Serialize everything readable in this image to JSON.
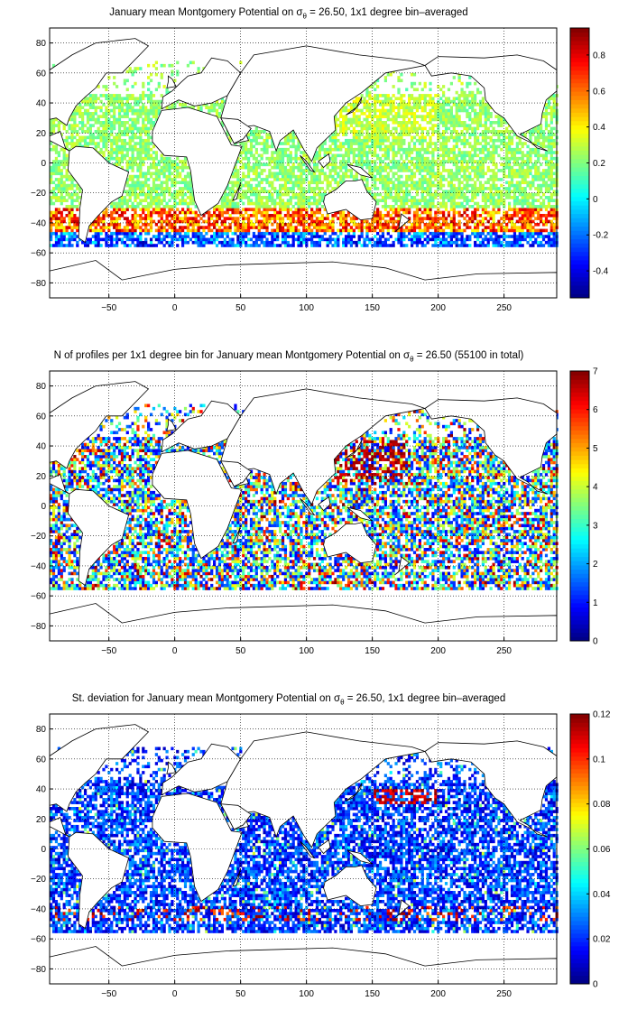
{
  "figure": {
    "panels": [
      {
        "title_pre": "January mean Montgomery Potential on σ",
        "title_sub": "θ",
        "title_post": " = 26.50, 1x1 degree bin–averaged",
        "colorbar_ticks": [
          "0.8",
          "0.6",
          "0.4",
          "0.2",
          "0",
          "-0.2",
          "-0.4"
        ]
      },
      {
        "title_pre": "N of profiles per 1x1 degree bin for January mean Montgomery Potential on σ",
        "title_sub": "θ",
        "title_post": " = 26.50 (55100 in total)",
        "colorbar_ticks": [
          "7",
          "6",
          "5",
          "4",
          "3",
          "2",
          "1",
          "0"
        ]
      },
      {
        "title_pre": "St. deviation for January mean Montgomery Potential on σ",
        "title_sub": "θ",
        "title_post": " = 26.50, 1x1 degree bin–averaged",
        "colorbar_ticks": [
          "0.12",
          "0.1",
          "0.08",
          "0.06",
          "0.04",
          "0.02",
          "0"
        ]
      }
    ]
  },
  "chart_data": [
    {
      "type": "heatmap",
      "title": "January mean Montgomery Potential on σθ = 26.50, 1x1 degree bin–averaged",
      "xlim": [
        -95,
        290
      ],
      "ylim": [
        -90,
        90
      ],
      "xticks": [
        -50,
        0,
        50,
        100,
        150,
        200,
        250
      ],
      "yticks": [
        80,
        60,
        40,
        20,
        0,
        -20,
        -40,
        -60,
        -80
      ],
      "colorbar": {
        "min": -0.55,
        "max": 0.95,
        "ticks": [
          0.8,
          0.6,
          0.4,
          0.2,
          0,
          -0.2,
          -0.4
        ],
        "colormap": "jet"
      },
      "grid": true,
      "lat_bands": [
        {
          "lat": 40,
          "value": 0.25
        },
        {
          "lat": 20,
          "value": 0.22
        },
        {
          "lat": 0,
          "value": 0.18
        },
        {
          "lat": -20,
          "value": 0.2
        },
        {
          "lat": -35,
          "value": 0.55
        },
        {
          "lat": -42,
          "value": 0.8
        },
        {
          "lat": -50,
          "value": -0.1
        }
      ]
    },
    {
      "type": "heatmap",
      "title": "N of profiles per 1x1 degree bin for January mean Montgomery Potential on σθ = 26.50 (55100 in total)",
      "xlim": [
        -95,
        290
      ],
      "ylim": [
        -90,
        90
      ],
      "xticks": [
        -50,
        0,
        50,
        100,
        150,
        200,
        250
      ],
      "yticks": [
        80,
        60,
        40,
        20,
        0,
        -20,
        -40,
        -60,
        -80
      ],
      "colorbar": {
        "min": 0,
        "max": 7,
        "ticks": [
          7,
          6,
          5,
          4,
          3,
          2,
          1,
          0
        ],
        "colormap": "jet"
      },
      "grid": true,
      "total_profiles": 55100
    },
    {
      "type": "heatmap",
      "title": "St. deviation for January mean Montgomery Potential on σθ = 26.50, 1x1 degree bin–averaged",
      "xlim": [
        -95,
        290
      ],
      "ylim": [
        -90,
        90
      ],
      "xticks": [
        -50,
        0,
        50,
        100,
        150,
        200,
        250
      ],
      "yticks": [
        80,
        60,
        40,
        20,
        0,
        -20,
        -40,
        -60,
        -80
      ],
      "colorbar": {
        "min": 0,
        "max": 0.12,
        "ticks": [
          0.12,
          0.1,
          0.08,
          0.06,
          0.04,
          0.02,
          0
        ],
        "colormap": "jet"
      },
      "grid": true
    }
  ]
}
